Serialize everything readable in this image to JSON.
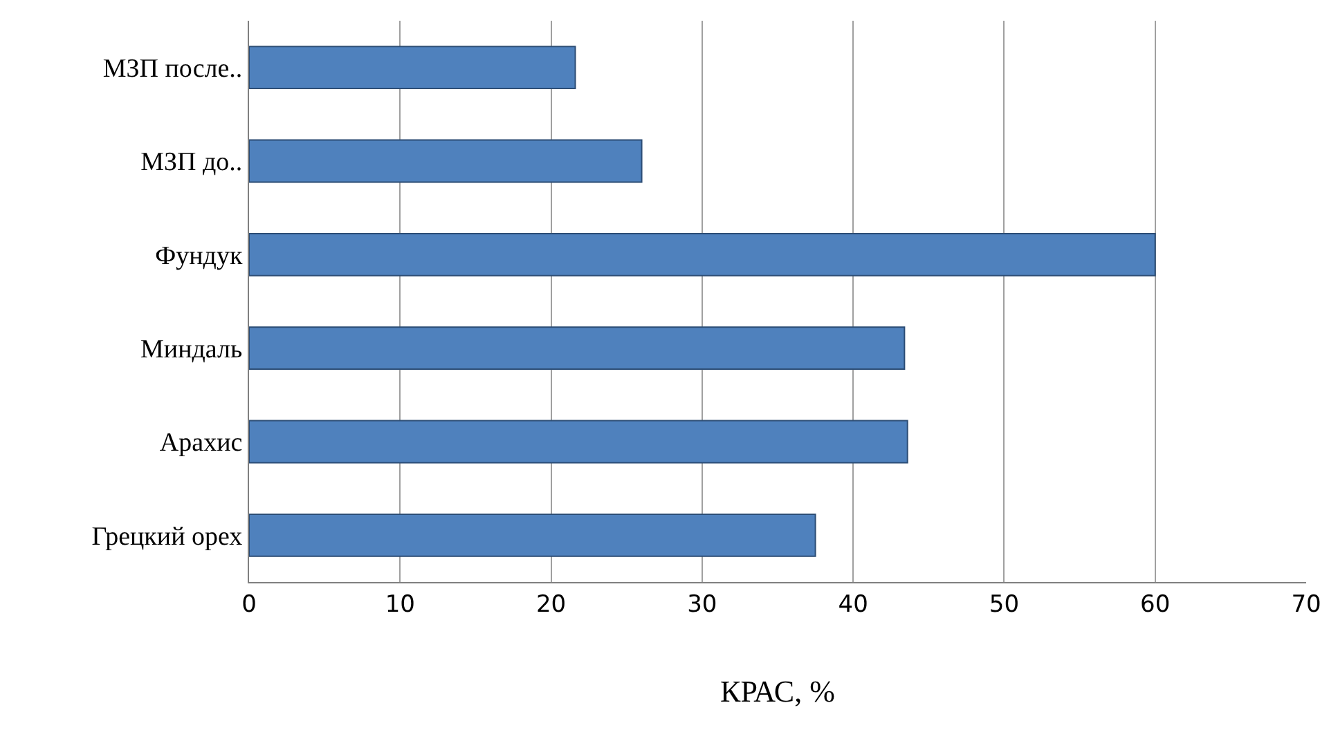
{
  "chart_data": {
    "type": "bar",
    "orientation": "horizontal",
    "xlabel": "КРАС, %",
    "categories": [
      "МЗП после..",
      "МЗП до..",
      "Фундук",
      "Миндаль",
      "Арахис",
      "Грецкий орех"
    ],
    "values": [
      21.6,
      26,
      60,
      43.4,
      43.6,
      37.5
    ],
    "color": "#4f81bd",
    "xlim": [
      0,
      70
    ],
    "xticks": [
      0,
      10,
      20,
      30,
      40,
      50,
      60,
      70
    ],
    "grid": "x",
    "legend": false
  }
}
